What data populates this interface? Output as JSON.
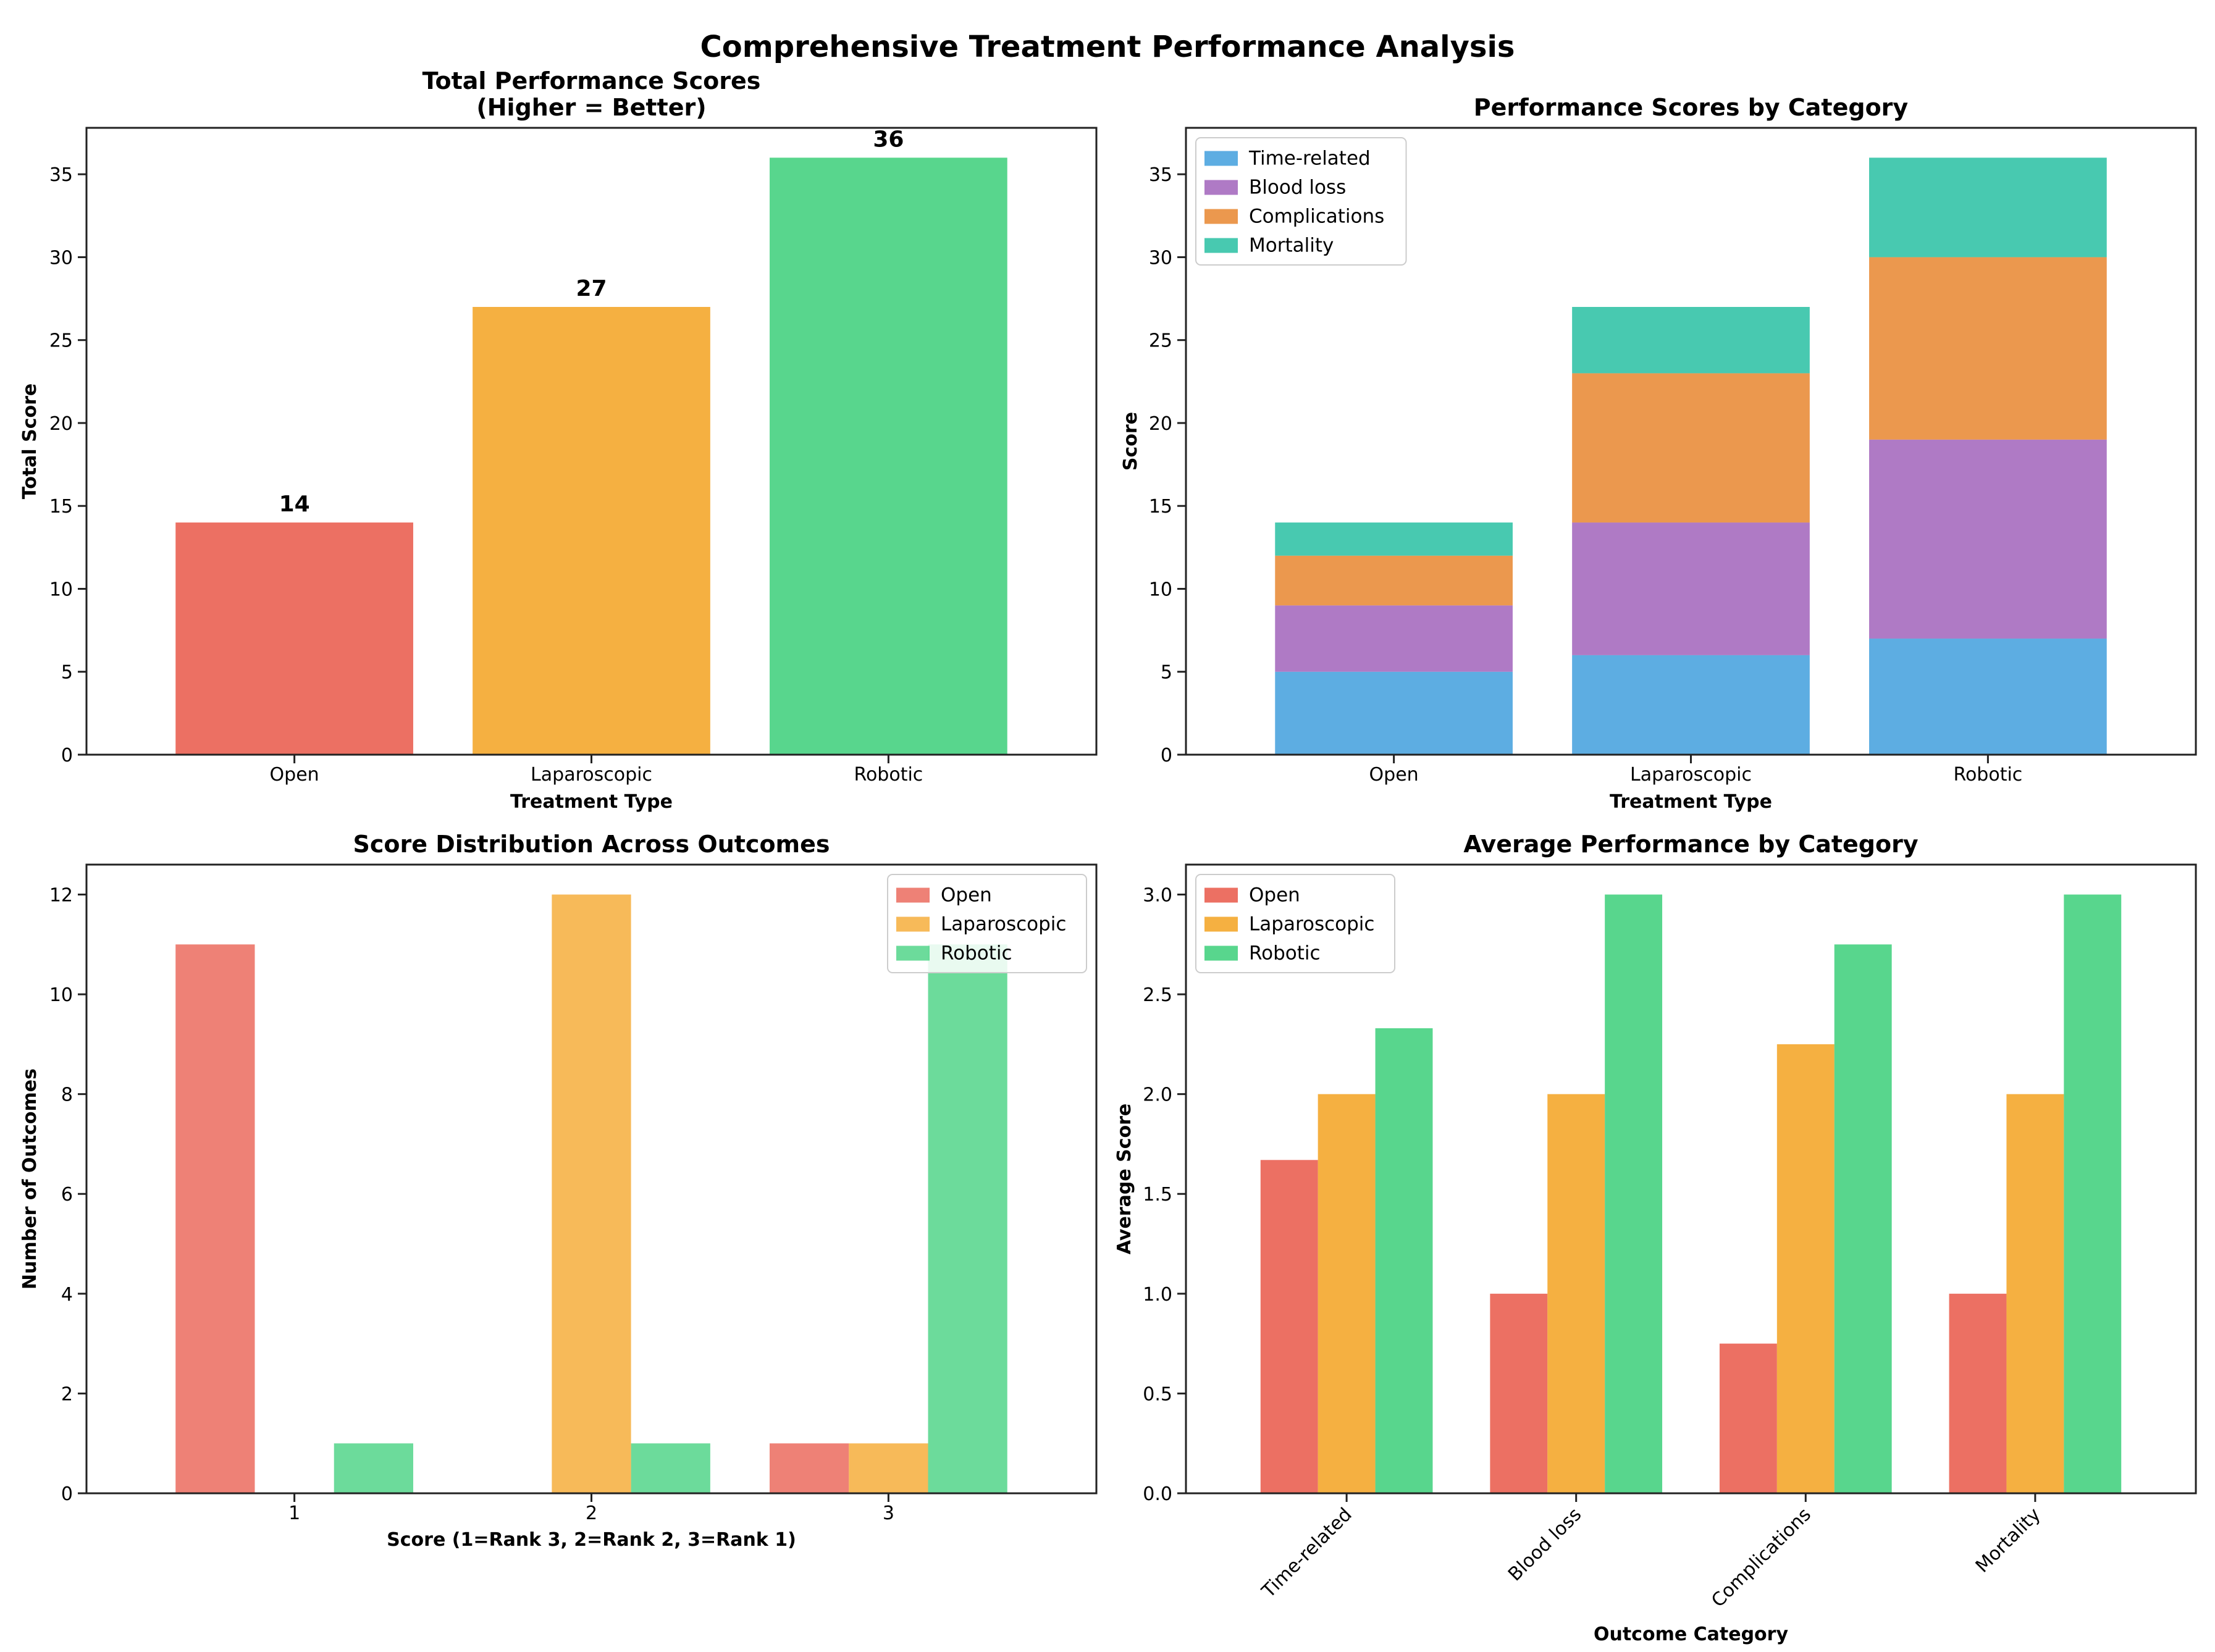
{
  "figure": {
    "suptitle": "Comprehensive Treatment Performance Analysis"
  },
  "colors": {
    "Open": "#e74c3c",
    "Laparoscopic": "#f39c12",
    "Robotic": "#2ecc71",
    "Time-related": "#3498db",
    "Blood loss": "#9b59b6",
    "Complications": "#e67e22",
    "Mortality": "#1abc9c"
  },
  "chart_data": [
    {
      "id": "p1",
      "type": "bar",
      "title": "Total Performance Scores\n(Higher = Better)",
      "xlabel": "Treatment Type",
      "ylabel": "Total Score",
      "categories": [
        "Open",
        "Laparoscopic",
        "Robotic"
      ],
      "values": [
        14,
        27,
        36
      ],
      "data_labels": [
        "14",
        "27",
        "36"
      ],
      "ylim": [
        0,
        37.8
      ],
      "yticks": [
        0,
        5,
        10,
        15,
        20,
        25,
        30,
        35
      ]
    },
    {
      "id": "p2",
      "type": "bar",
      "stacked": true,
      "title": "Performance Scores by Category",
      "xlabel": "Treatment Type",
      "ylabel": "Score",
      "categories": [
        "Open",
        "Laparoscopic",
        "Robotic"
      ],
      "series": [
        {
          "name": "Time-related",
          "values": [
            5,
            6,
            7
          ]
        },
        {
          "name": "Blood loss",
          "values": [
            4,
            8,
            12
          ]
        },
        {
          "name": "Complications",
          "values": [
            3,
            9,
            11
          ]
        },
        {
          "name": "Mortality",
          "values": [
            2,
            4,
            6
          ]
        }
      ],
      "legend": "top-left",
      "ylim": [
        0,
        37.8
      ],
      "yticks": [
        0,
        5,
        10,
        15,
        20,
        25,
        30,
        35
      ]
    },
    {
      "id": "p3",
      "type": "bar",
      "grouped": true,
      "title": "Score Distribution Across Outcomes",
      "xlabel": "Score (1=Rank 3, 2=Rank 2, 3=Rank 1)",
      "ylabel": "Number of Outcomes",
      "categories": [
        "1",
        "2",
        "3"
      ],
      "series": [
        {
          "name": "Open",
          "values": [
            11,
            0,
            1
          ]
        },
        {
          "name": "Laparoscopic",
          "values": [
            0,
            12,
            1
          ]
        },
        {
          "name": "Robotic",
          "values": [
            1,
            1,
            11
          ]
        }
      ],
      "legend": "top-right",
      "ylim": [
        0,
        12.6
      ],
      "yticks": [
        0,
        2,
        4,
        6,
        8,
        10,
        12
      ]
    },
    {
      "id": "p4",
      "type": "bar",
      "grouped": true,
      "title": "Average Performance by Category",
      "xlabel": "Outcome Category",
      "ylabel": "Average Score",
      "categories": [
        "Time-related",
        "Blood loss",
        "Complications",
        "Mortality"
      ],
      "series": [
        {
          "name": "Open",
          "values": [
            1.67,
            1.0,
            0.75,
            1.0
          ]
        },
        {
          "name": "Laparoscopic",
          "values": [
            2.0,
            2.0,
            2.25,
            2.0
          ]
        },
        {
          "name": "Robotic",
          "values": [
            2.33,
            3.0,
            2.75,
            3.0
          ]
        }
      ],
      "legend": "top-left",
      "ylim": [
        0,
        3.15
      ],
      "yticks": [
        0.0,
        0.5,
        1.0,
        1.5,
        2.0,
        2.5,
        3.0
      ],
      "ytick_labels": [
        "0.0",
        "0.5",
        "1.0",
        "1.5",
        "2.0",
        "2.5",
        "3.0"
      ]
    }
  ]
}
